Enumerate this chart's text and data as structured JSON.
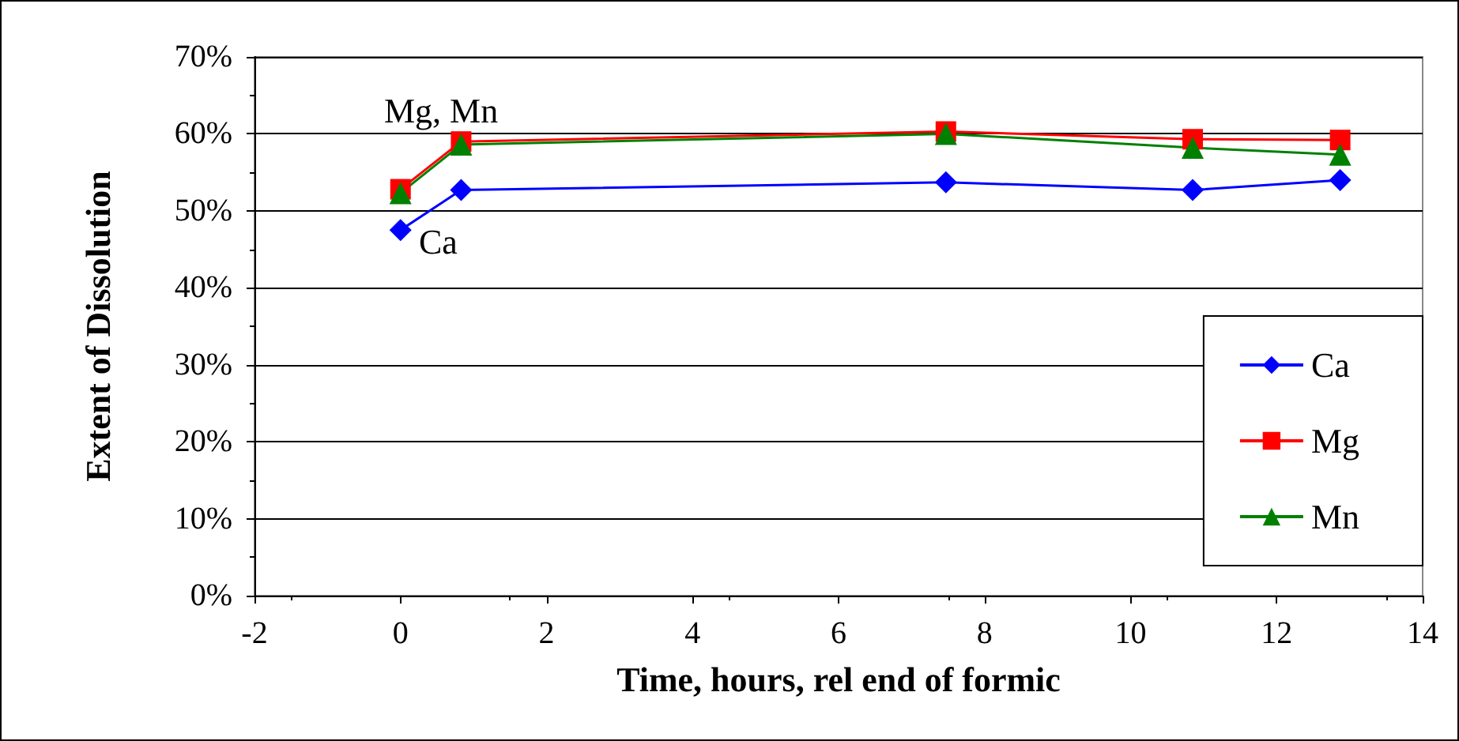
{
  "chart_data": {
    "type": "line",
    "xlabel": "Time, hours, rel end of formic",
    "ylabel": "Extent of Dissolution",
    "x": [
      0,
      0.83,
      7.47,
      10.85,
      12.87
    ],
    "series": [
      {
        "name": "Ca",
        "color": "#0000ff",
        "marker": "diamond",
        "values": [
          47.5,
          52.7,
          53.7,
          52.7,
          54.0
        ]
      },
      {
        "name": "Mg",
        "color": "#ff0000",
        "marker": "square",
        "values": [
          52.8,
          59.0,
          60.3,
          59.3,
          59.2
        ]
      },
      {
        "name": "Mn",
        "color": "#008000",
        "marker": "triangle",
        "values": [
          52.3,
          58.6,
          60.0,
          58.2,
          57.3
        ]
      }
    ],
    "xlim": [
      -2,
      14
    ],
    "xticks": [
      -2,
      0,
      2,
      4,
      6,
      8,
      10,
      12,
      14
    ],
    "ylim": [
      0,
      70
    ],
    "yticks": [
      {
        "value": 0,
        "label": "0%"
      },
      {
        "value": 10,
        "label": "10%"
      },
      {
        "value": 20,
        "label": "20%"
      },
      {
        "value": 30,
        "label": "30%"
      },
      {
        "value": 40,
        "label": "40%"
      },
      {
        "value": 50,
        "label": "50%"
      },
      {
        "value": 60,
        "label": "60%"
      },
      {
        "value": 70,
        "label": "70%"
      }
    ],
    "annotations": [
      "Mg, Mn",
      "Ca"
    ],
    "grid": "y",
    "legend": "bottom right",
    "line_style": "solid"
  }
}
